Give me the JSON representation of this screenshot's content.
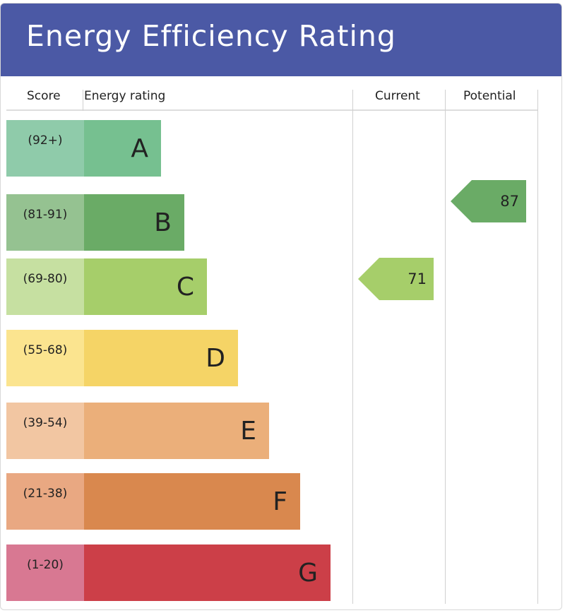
{
  "title": "Energy Efficiency Rating",
  "colors": {
    "header": "#4b59a5",
    "text": "#222222",
    "grid": "#d0d0d0"
  },
  "columns": {
    "score": "Score",
    "rating": "Energy rating",
    "current": "Current",
    "potential": "Potential"
  },
  "chart_data": {
    "type": "bar",
    "title": "Energy Efficiency Rating",
    "categories": [
      "A",
      "B",
      "C",
      "D",
      "E",
      "F",
      "G"
    ],
    "score_ranges": [
      "(92+)",
      "(81-91)",
      "(69-80)",
      "(55-68)",
      "(39-54)",
      "(21-38)",
      "(1-20)"
    ],
    "bar_colors": [
      "#76c090",
      "#6aab66",
      "#a6ce6a",
      "#f5d466",
      "#ebaf7a",
      "#d9884e",
      "#cc3f48"
    ],
    "score_colors": [
      "#8fcbaa",
      "#95c291",
      "#c6e0a1",
      "#fbe48f",
      "#f2c6a2",
      "#e9a882",
      "#d87892"
    ],
    "current": {
      "value": 71,
      "band": "C"
    },
    "potential": {
      "value": 87,
      "band": "B"
    }
  }
}
